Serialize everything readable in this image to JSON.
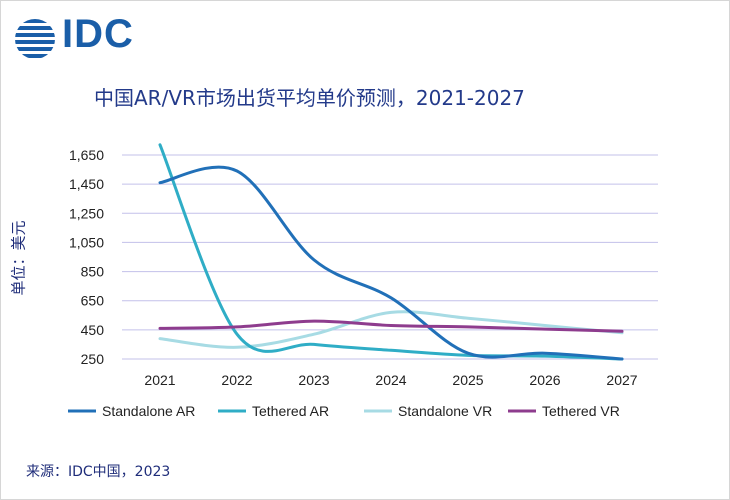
{
  "logo": {
    "text": "IDC"
  },
  "title": "中国AR/VR市场出货平均单价预测，2021-2027",
  "source": "来源：IDC中国，2023",
  "chart_data": {
    "type": "line",
    "title": "中国AR/VR市场出货平均单价预测，2021-2027",
    "xlabel": "",
    "ylabel": "单位：美元",
    "categories": [
      "2021",
      "2022",
      "2023",
      "2024",
      "2025",
      "2026",
      "2027"
    ],
    "yticks": [
      "1,650",
      "1,450",
      "1,250",
      "1,050",
      "850",
      "650",
      "450",
      "250"
    ],
    "ylim": [
      250,
      1650
    ],
    "grid": true,
    "legend": "bottom",
    "series": [
      {
        "name": "Standalone AR",
        "color": "#2170b8",
        "values": [
          1460,
          1540,
          930,
          670,
          290,
          290,
          250
        ]
      },
      {
        "name": "Tethered AR",
        "color": "#2fadc6",
        "values": [
          1720,
          420,
          350,
          310,
          275,
          270,
          250
        ]
      },
      {
        "name": "Standalone VR",
        "color": "#a7dbe4",
        "values": [
          390,
          330,
          420,
          570,
          530,
          480,
          430
        ]
      },
      {
        "name": "Tethered VR",
        "color": "#8e3c8e",
        "values": [
          460,
          470,
          510,
          480,
          470,
          455,
          440
        ]
      }
    ]
  }
}
